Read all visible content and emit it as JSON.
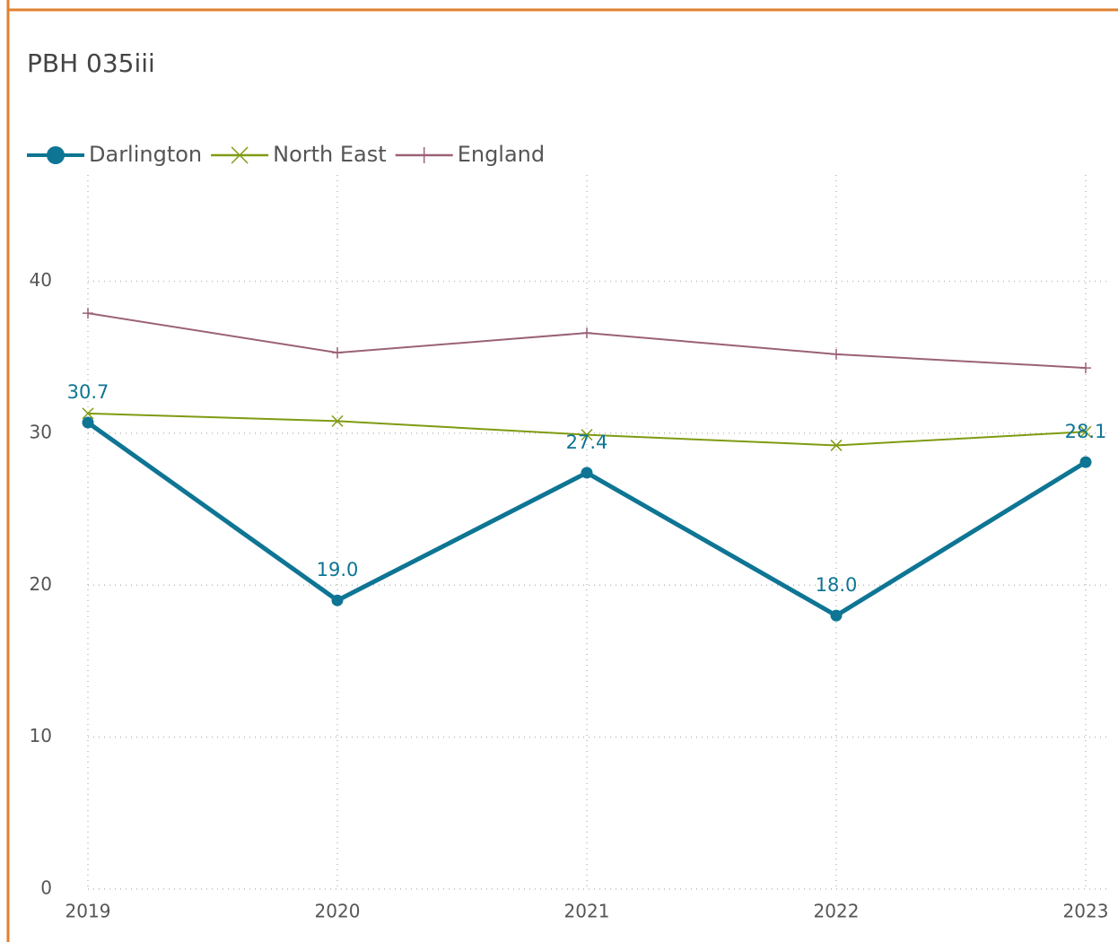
{
  "chart_data": {
    "type": "line",
    "title": "PBH 035iii",
    "categories": [
      "2019",
      "2020",
      "2021",
      "2022",
      "2023"
    ],
    "series": [
      {
        "name": "Darlington",
        "color": "#0e7594",
        "marker": "circle",
        "values": [
          30.7,
          19.0,
          27.4,
          18.0,
          28.1
        ],
        "value_labels": [
          "30.7",
          "19.0",
          "27.4",
          "18.0",
          "28.1"
        ]
      },
      {
        "name": "North East",
        "color": "#7f9b12",
        "marker": "x",
        "values": [
          31.3,
          30.8,
          29.9,
          29.2,
          30.1
        ]
      },
      {
        "name": "England",
        "color": "#9b6178",
        "marker": "plus",
        "values": [
          37.9,
          35.3,
          36.6,
          35.2,
          34.3
        ]
      }
    ],
    "ylim": [
      0,
      47
    ],
    "yticks": [
      0,
      10,
      20,
      30,
      40
    ],
    "grid": true,
    "legend": "top-left"
  }
}
